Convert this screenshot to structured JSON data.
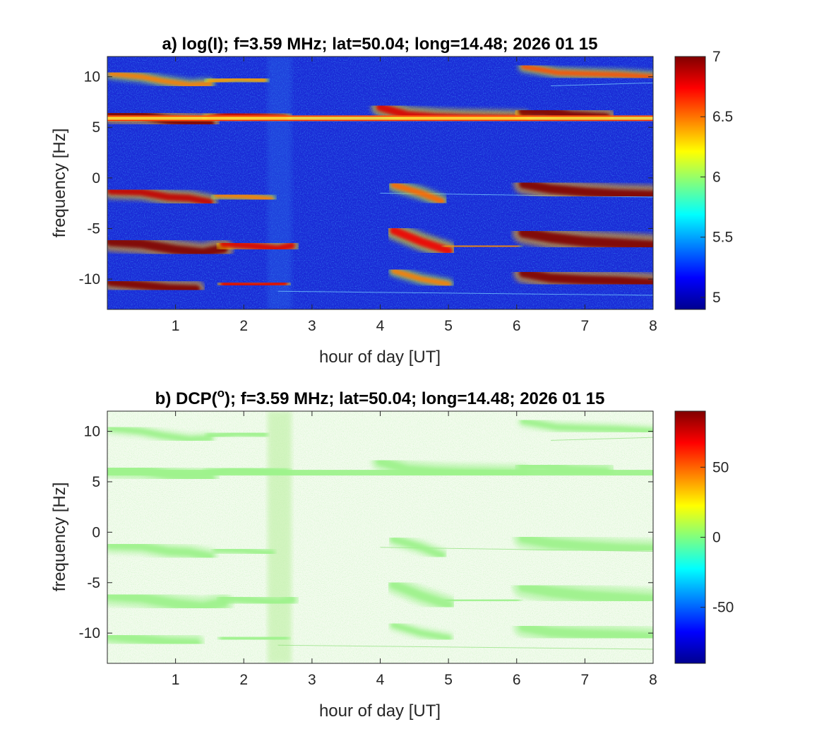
{
  "chart_data": [
    {
      "type": "heatmap",
      "title": "a) log(I); f=3.59 MHz;  lat=50.04; long=14.48; 2026 01 15",
      "xlabel": "hour of day [UT]",
      "ylabel": "frequency [Hz]",
      "xlim": [
        0,
        8
      ],
      "ylim": [
        -13,
        12
      ],
      "x_ticks": [
        "1",
        "2",
        "3",
        "4",
        "5",
        "6",
        "7",
        "8"
      ],
      "y_ticks": [
        "10",
        "5",
        "0",
        "-5",
        "-10"
      ],
      "colorbar": {
        "colormap": "jet",
        "range": [
          4.9,
          7.0
        ],
        "ticks": [
          "7",
          "6.5",
          "6",
          "5.5",
          "5"
        ]
      },
      "background_color": "#1a2bd6",
      "traces": [
        {
          "name": "t1",
          "points": [
            [
              0.05,
              10.3
            ],
            [
              0.5,
              10.0
            ],
            [
              0.8,
              9.6
            ],
            [
              1.2,
              9.2
            ],
            [
              1.5,
              9.3
            ]
          ],
          "intensity": 0.45,
          "width": 0.5
        },
        {
          "name": "t2",
          "points": [
            [
              1.5,
              9.5
            ],
            [
              1.9,
              9.8
            ],
            [
              2.3,
              9.7
            ]
          ],
          "intensity": 0.4,
          "width": 0.5
        },
        {
          "name": "t3",
          "points": [
            [
              0.05,
              6.3
            ],
            [
              0.5,
              6.2
            ],
            [
              0.9,
              5.7
            ],
            [
              1.2,
              5.5
            ],
            [
              1.5,
              5.4
            ]
          ],
          "intensity": 1.0,
          "width": 0.9
        },
        {
          "name": "t4",
          "points": [
            [
              1.5,
              5.8
            ],
            [
              1.8,
              6.3
            ],
            [
              2.2,
              6.1
            ],
            [
              2.6,
              5.9
            ]
          ],
          "intensity": 0.85,
          "width": 0.7
        },
        {
          "name": "t5",
          "points": [
            [
              4.0,
              7.0
            ],
            [
              4.4,
              6.2
            ],
            [
              4.8,
              6.0
            ],
            [
              5.2,
              5.9
            ],
            [
              6.1,
              5.8
            ]
          ],
          "intensity": 0.8,
          "width": 0.8
        },
        {
          "name": "t6",
          "points": [
            [
              6.1,
              6.6
            ],
            [
              6.4,
              6.6
            ],
            [
              6.8,
              6.1
            ],
            [
              7.3,
              5.9
            ]
          ],
          "intensity": 1.0,
          "width": 1.0
        },
        {
          "name": "t7",
          "points": [
            [
              6.1,
              11.0
            ],
            [
              6.6,
              10.4
            ],
            [
              7.0,
              10.3
            ],
            [
              7.5,
              10.2
            ],
            [
              8.0,
              10.0
            ]
          ],
          "intensity": 0.55,
          "width": 0.5
        },
        {
          "name": "t8",
          "points": [
            [
              0.05,
              -1.3
            ],
            [
              0.5,
              -1.4
            ],
            [
              0.9,
              -1.9
            ],
            [
              1.2,
              -2.0
            ],
            [
              1.5,
              -2.4
            ]
          ],
          "intensity": 0.85,
          "width": 0.7
        },
        {
          "name": "t9",
          "points": [
            [
              1.6,
              -1.7
            ],
            [
              2.0,
              -1.8
            ],
            [
              2.4,
              -2.1
            ]
          ],
          "intensity": 0.45,
          "width": 0.5
        },
        {
          "name": "t10",
          "points": [
            [
              4.2,
              -0.7
            ],
            [
              4.6,
              -1.5
            ],
            [
              4.9,
              -2.3
            ]
          ],
          "intensity": 0.5,
          "width": 0.6
        },
        {
          "name": "t11",
          "points": [
            [
              6.1,
              -0.6
            ],
            [
              6.5,
              -1.1
            ],
            [
              7.0,
              -1.4
            ],
            [
              7.5,
              -1.6
            ],
            [
              8.0,
              -1.7
            ]
          ],
          "intensity": 1.0,
          "width": 0.9
        },
        {
          "name": "t12",
          "points": [
            [
              0.05,
              -6.3
            ],
            [
              0.5,
              -6.5
            ],
            [
              1.0,
              -7.1
            ],
            [
              1.4,
              -7.4
            ],
            [
              1.7,
              -7.0
            ]
          ],
          "intensity": 1.0,
          "width": 0.9
        },
        {
          "name": "t13",
          "points": [
            [
              1.7,
              -6.5
            ],
            [
              2.1,
              -6.7
            ],
            [
              2.5,
              -7.0
            ],
            [
              2.7,
              -6.7
            ]
          ],
          "intensity": 0.8,
          "width": 0.7
        },
        {
          "name": "t14",
          "points": [
            [
              4.2,
              -5.2
            ],
            [
              4.6,
              -6.3
            ],
            [
              5.0,
              -7.2
            ]
          ],
          "intensity": 0.75,
          "width": 0.8
        },
        {
          "name": "t15",
          "points": [
            [
              5.0,
              -6.8
            ],
            [
              5.5,
              -6.8
            ],
            [
              6.0,
              -6.7
            ]
          ],
          "intensity": 0.45,
          "width": 0.5
        },
        {
          "name": "t16",
          "points": [
            [
              6.1,
              -5.4
            ],
            [
              6.5,
              -5.9
            ],
            [
              7.0,
              -6.3
            ],
            [
              7.5,
              -6.5
            ],
            [
              8.0,
              -6.7
            ]
          ],
          "intensity": 1.0,
          "width": 1.0
        },
        {
          "name": "t17",
          "points": [
            [
              0.05,
              -10.3
            ],
            [
              0.5,
              -10.6
            ],
            [
              0.9,
              -10.9
            ],
            [
              1.3,
              -11.0
            ]
          ],
          "intensity": 1.0,
          "width": 0.8
        },
        {
          "name": "t18",
          "points": [
            [
              1.7,
              -10.5
            ],
            [
              2.2,
              -10.6
            ],
            [
              2.6,
              -10.4
            ]
          ],
          "intensity": 0.8,
          "width": 0.6
        },
        {
          "name": "t19",
          "points": [
            [
              4.2,
              -9.2
            ],
            [
              4.6,
              -10.0
            ],
            [
              5.0,
              -10.5
            ]
          ],
          "intensity": 0.45,
          "width": 0.5
        },
        {
          "name": "t20",
          "points": [
            [
              6.1,
              -9.4
            ],
            [
              6.5,
              -9.9
            ],
            [
              7.0,
              -10.1
            ],
            [
              7.5,
              -10.2
            ],
            [
              8.0,
              -10.4
            ]
          ],
          "intensity": 1.0,
          "width": 0.9
        }
      ],
      "carrier_line": {
        "y": 5.9,
        "x0": 0,
        "x1": 8,
        "intensity": 1.0
      }
    },
    {
      "type": "heatmap",
      "title": "b) DCP(",
      "title_superscript": "o",
      "title_suffix": "); f=3.59 MHz;  lat=50.04; long=14.48; 2026 01 15",
      "xlabel": "hour of day [UT]",
      "ylabel": "frequency [Hz]",
      "xlim": [
        0,
        8
      ],
      "ylim": [
        -13,
        12
      ],
      "x_ticks": [
        "1",
        "2",
        "3",
        "4",
        "5",
        "6",
        "7",
        "8"
      ],
      "y_ticks": [
        "10",
        "5",
        "0",
        "-5",
        "-10"
      ],
      "colorbar": {
        "colormap": "jet",
        "range": [
          -90,
          90
        ],
        "ticks": [
          "50",
          "0",
          "-50"
        ]
      },
      "background_color": "#f3fbee",
      "trace_color": "#9ef28c"
    }
  ]
}
